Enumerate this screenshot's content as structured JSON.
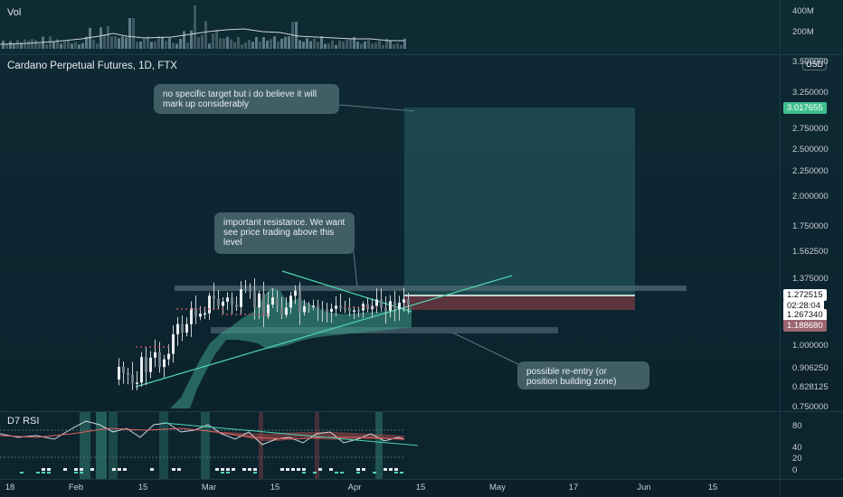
{
  "volume_pane": {
    "label": "Vol",
    "axis": [
      "400M",
      "200M"
    ]
  },
  "main_pane": {
    "title": "Cardano Perpetual Futures, 1D, FTX",
    "currency_button": "USD",
    "price_axis": [
      "3.500000",
      "3.250000",
      "2.750000",
      "2.500000",
      "2.250000",
      "2.000000",
      "1.750000",
      "1.562500",
      "1.375000",
      "1.000000",
      "0.906250",
      "0.828125",
      "0.750000"
    ],
    "price_tags": {
      "target": "3.017655",
      "last": "1.272515",
      "countdown": "02:28:04",
      "level_1": "1.267340",
      "level_2": "1.188680"
    },
    "annotations": [
      "no specific target but i do believe it will mark up considerably",
      "important resistance. We want see price trading above this level",
      "possible re-entry (or position building zone)"
    ]
  },
  "rsi_pane": {
    "label": "D7 RSI",
    "axis": [
      "80",
      "40",
      "20",
      "0"
    ]
  },
  "time_axis": [
    "18",
    "Feb",
    "15",
    "Mar",
    "15",
    "Apr",
    "15",
    "May",
    "17",
    "Jun",
    "15"
  ],
  "colors": {
    "background": "#0d2731",
    "bull": "#e8ecef",
    "cloud": "#3f9f8a",
    "trendline": "#4fd6b0",
    "target_tag": "#3fbf8f",
    "stop_zone": "#7a3a44"
  }
}
